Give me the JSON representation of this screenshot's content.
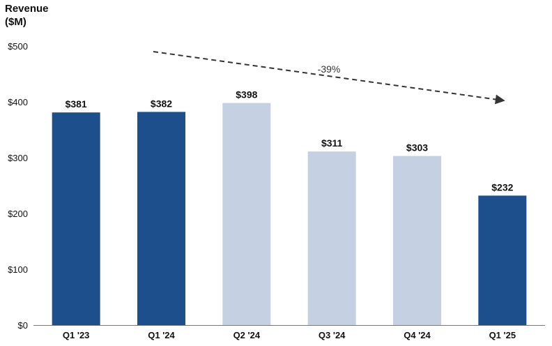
{
  "chart_data": {
    "type": "bar",
    "ylabel": "Revenue\n($M)",
    "categories": [
      "Q1 '23",
      "Q1 '24",
      "Q2 '24",
      "Q3 '24",
      "Q4 '24",
      "Q1 '25"
    ],
    "values": [
      381,
      382,
      398,
      311,
      303,
      232
    ],
    "data_labels": [
      "$381",
      "$382",
      "$398",
      "$311",
      "$303",
      "$232"
    ],
    "highlighted": [
      true,
      true,
      false,
      false,
      false,
      true
    ],
    "colors": {
      "highlight": "#1c4f8c",
      "muted": "#c5d0e2",
      "axis": "#777777",
      "text": "#111111"
    },
    "ylim": [
      0,
      500
    ],
    "yticks": [
      0,
      100,
      200,
      300,
      400,
      500
    ],
    "ytick_labels": [
      "$0",
      "$100",
      "$200",
      "$300",
      "$400",
      "$500"
    ],
    "annotation": {
      "text": "-39%",
      "style": "dashed-arrow",
      "from_category": "Q1 '24",
      "to_category": "Q1 '25"
    },
    "grid": false,
    "legend": "none"
  }
}
